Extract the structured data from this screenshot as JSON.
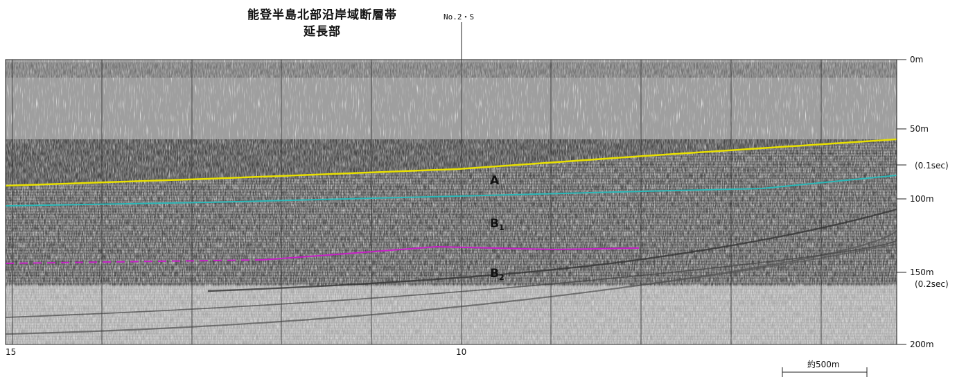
{
  "header": {
    "title_line1": "能登半島北部沿岸域断層帯",
    "title_line2": "延長部",
    "line_label": "No.2・S"
  },
  "depth_axis": {
    "ticks": [
      {
        "label": "0m"
      },
      {
        "label": "50m"
      },
      {
        "label": "(0.1sec)"
      },
      {
        "label": "100m"
      },
      {
        "label": "150m"
      },
      {
        "label": "(0.2sec)"
      },
      {
        "label": "200m"
      }
    ]
  },
  "shotpoints": {
    "left": "15",
    "middle": "10"
  },
  "units": {
    "a": {
      "main": "A",
      "sub": ""
    },
    "b1": {
      "main": "B",
      "sub": "1"
    },
    "b2": {
      "main": "B",
      "sub": "2"
    }
  },
  "scale_bar": {
    "label": "約500m"
  },
  "colors": {
    "seafloor": "#e8e000",
    "a_base": "#2bb8b8",
    "b1_base": "#c820c8",
    "profile_bg": "#f4f4f4"
  }
}
